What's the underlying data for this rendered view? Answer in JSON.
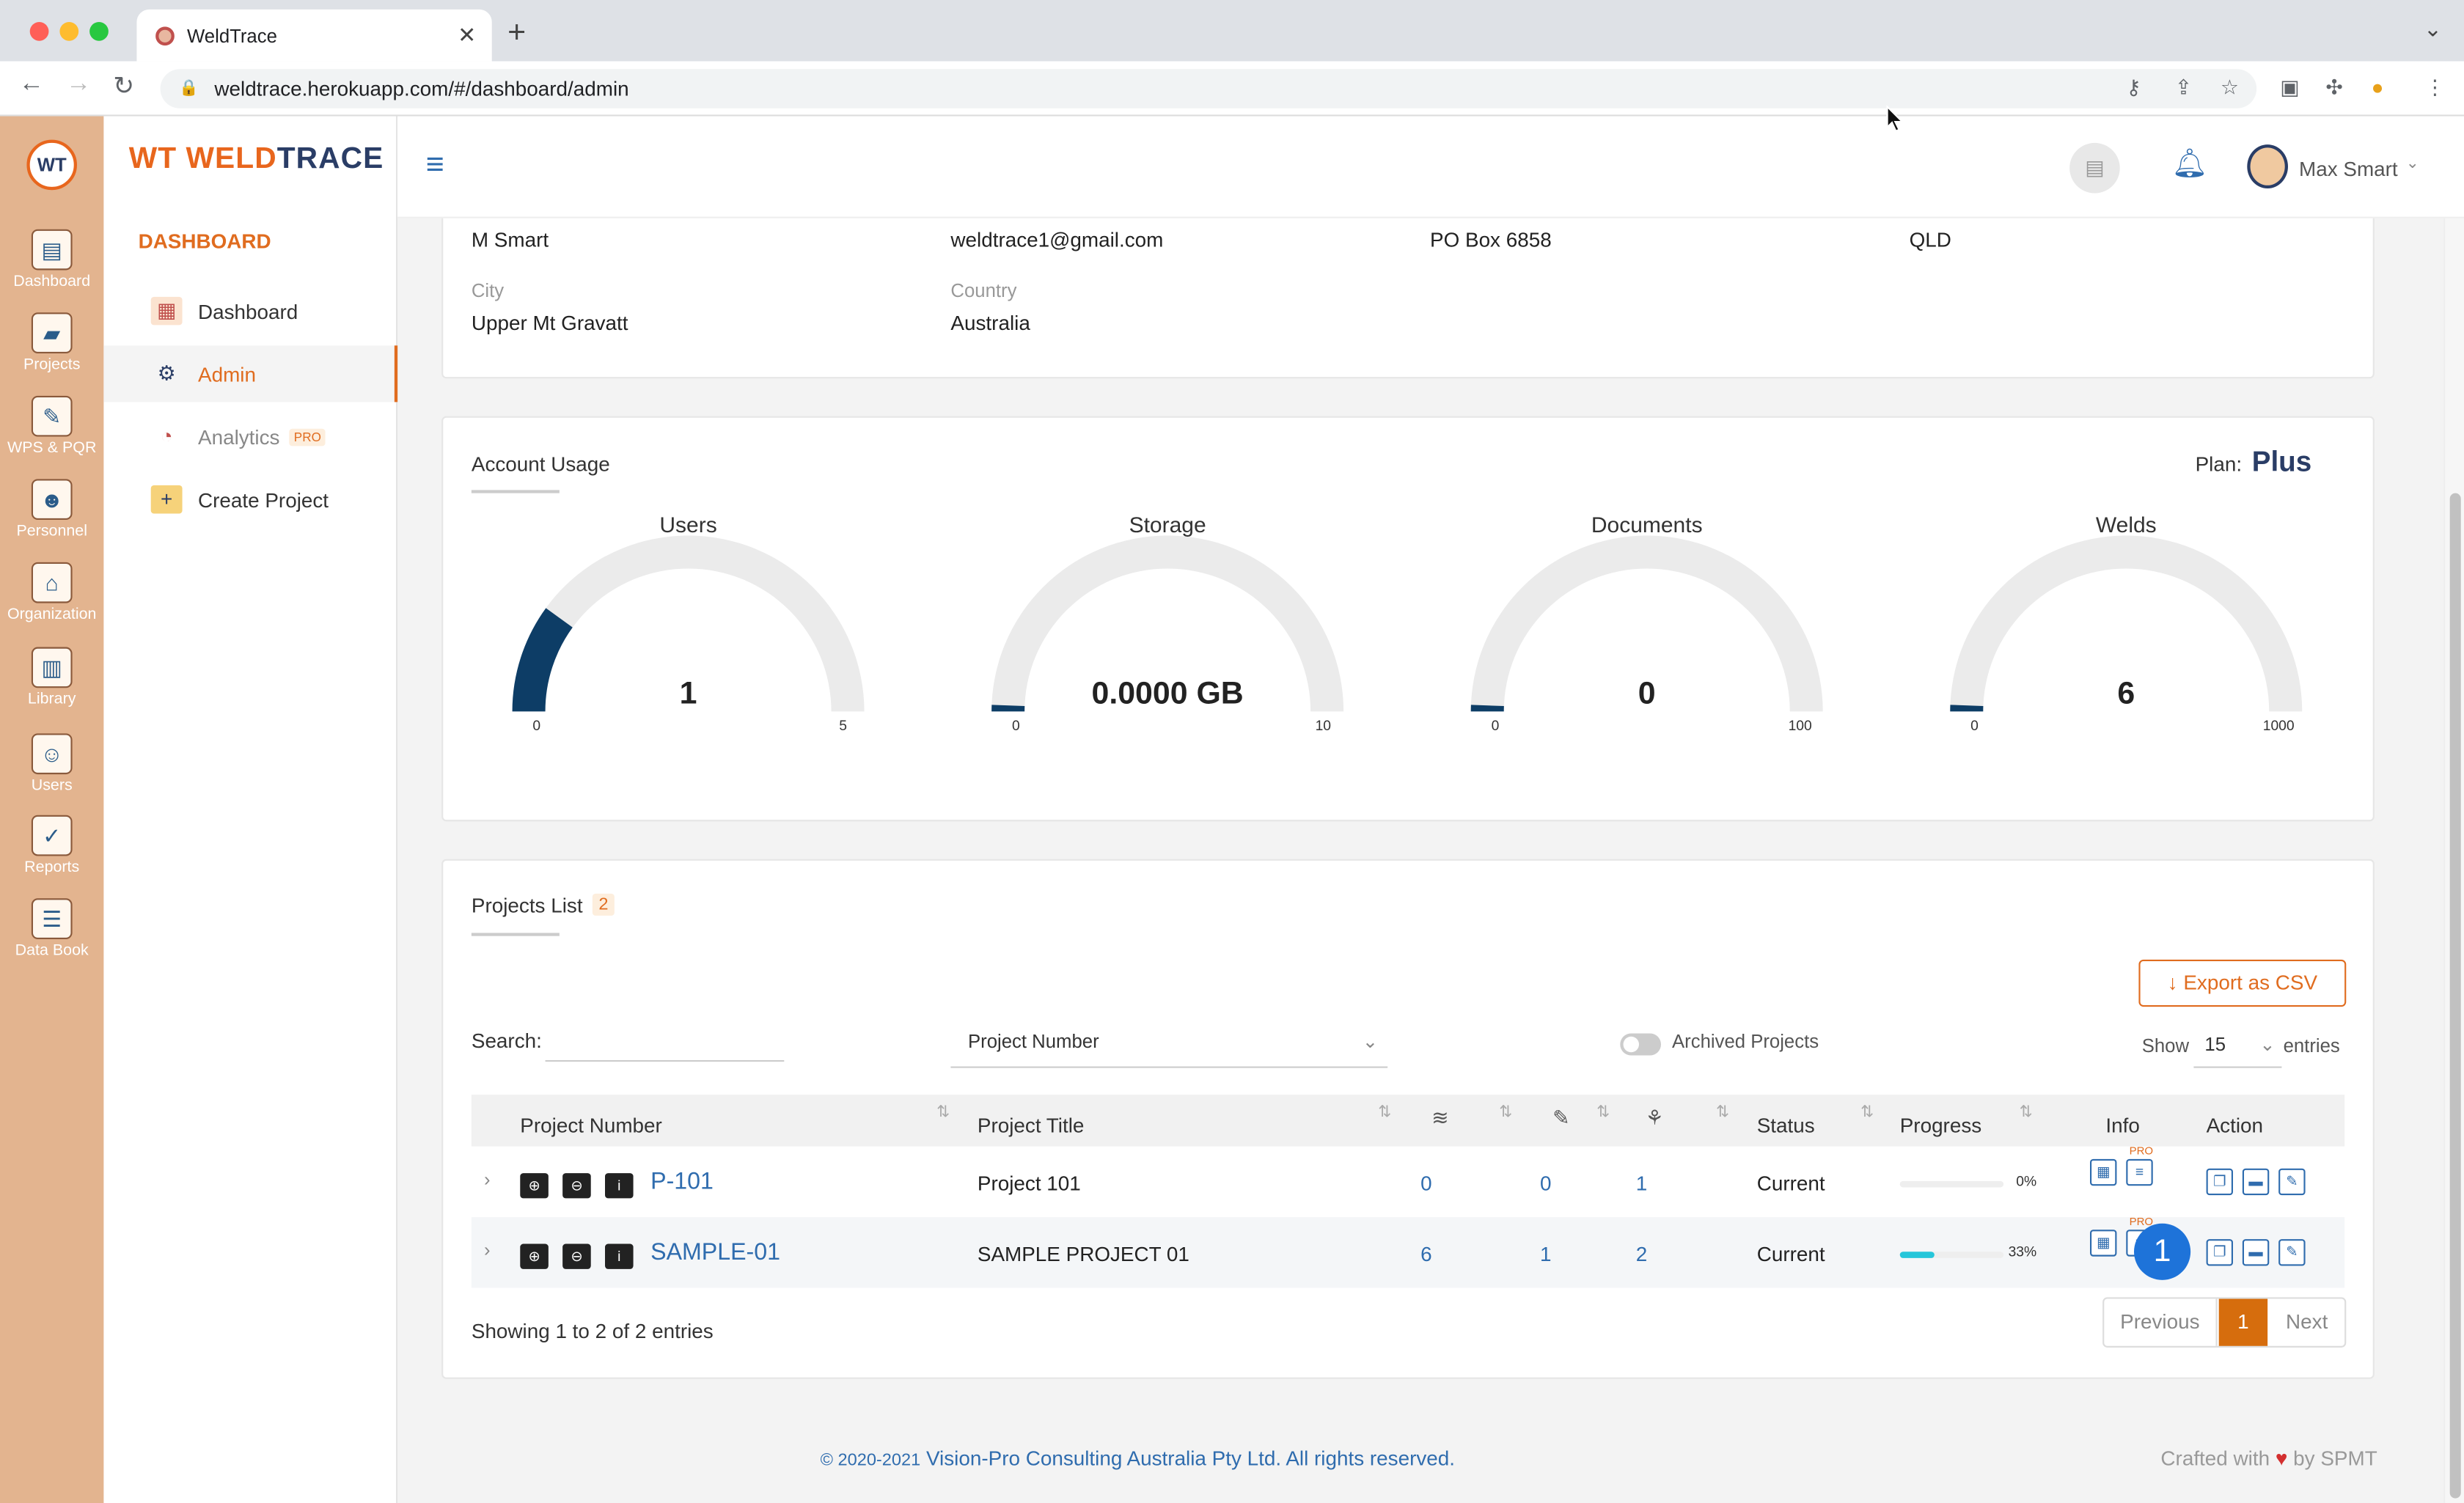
{
  "browser": {
    "tab_title": "WeldTrace",
    "url": "weldtrace.herokuapp.com/#/dashboard/admin"
  },
  "rail": {
    "items": [
      "Dashboard",
      "Projects",
      "WPS & PQR",
      "Personnel",
      "Organization",
      "Library",
      "Users",
      "Reports",
      "Data Book"
    ]
  },
  "sidebar": {
    "logo_wt": "WT",
    "logo_weld": "WELD",
    "logo_trace": "TRACE",
    "section": "DASHBOARD",
    "items": [
      {
        "label": "Dashboard",
        "icon": "chart-icon"
      },
      {
        "label": "Admin",
        "icon": "gear-icon"
      },
      {
        "label": "Analytics",
        "icon": "analytics-icon",
        "badge": "PRO"
      },
      {
        "label": "Create Project",
        "icon": "folder-add-icon"
      }
    ]
  },
  "header": {
    "user_name": "Max Smart"
  },
  "details": {
    "name": "M Smart",
    "email": "weldtrace1@gmail.com",
    "address": "PO Box 6858",
    "state": "QLD",
    "city_label": "City",
    "city": "Upper Mt Gravatt",
    "country_label": "Country",
    "country": "Australia"
  },
  "usage": {
    "title": "Account Usage",
    "plan_label": "Plan:",
    "plan": "Plus",
    "gauges": [
      {
        "title": "Users",
        "value": 1,
        "display": "1",
        "min": 0,
        "max": 5
      },
      {
        "title": "Storage",
        "value": 0,
        "display": "0.0000 GB",
        "min": 0,
        "max": 10
      },
      {
        "title": "Documents",
        "value": 0,
        "display": "0",
        "min": 0,
        "max": 100
      },
      {
        "title": "Welds",
        "value": 6,
        "display": "6",
        "min": 0,
        "max": 1000
      }
    ],
    "colors": {
      "fill": "#0d3d66",
      "track": "#ebebeb"
    }
  },
  "projects": {
    "title": "Projects List",
    "count": "2",
    "export_label": "Export as CSV",
    "search_label": "Search:",
    "search_value": "",
    "filter_value": "Project Number",
    "archived_label": "Archived Projects",
    "show_label": "Show",
    "show_value": "15",
    "entries_label": "entries",
    "columns": {
      "number": "Project Number",
      "title": "Project Title",
      "status": "Status",
      "progress": "Progress",
      "info": "Info",
      "action": "Action"
    },
    "rows": [
      {
        "number": "P-101",
        "title": "Project 101",
        "c1": "0",
        "c2": "0",
        "c3": "1",
        "status": "Current",
        "progress": 0,
        "progress_label": "0%",
        "pro": "PRO"
      },
      {
        "number": "SAMPLE-01",
        "title": "SAMPLE PROJECT 01",
        "c1": "6",
        "c2": "1",
        "c3": "2",
        "status": "Current",
        "progress": 33,
        "progress_label": "33%",
        "pro": "PRO"
      }
    ],
    "showing": "Showing 1 to 2 of 2 entries",
    "pagination": {
      "prev": "Previous",
      "page": "1",
      "next": "Next"
    },
    "badge": "1"
  },
  "footer": {
    "copy": "© 2020-2021",
    "company": "Vision-Pro Consulting Australia Pty Ltd. All rights reserved.",
    "crafted": "Crafted with",
    "by": "by SPMT"
  }
}
